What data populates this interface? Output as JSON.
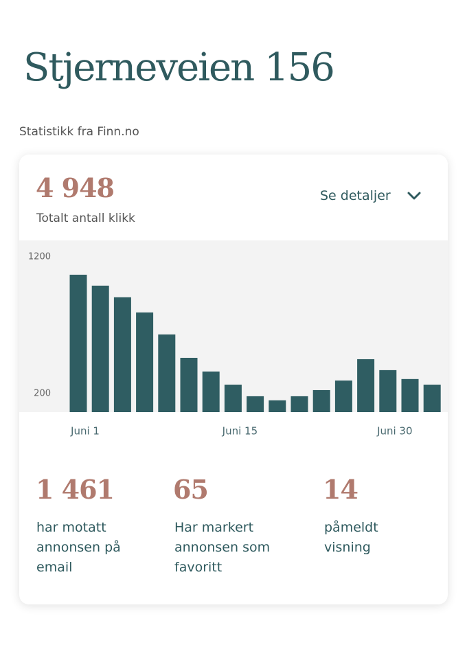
{
  "header": {
    "title": "Stjerneveien 156",
    "subtitle": "Statistikk fra Finn.no"
  },
  "card": {
    "total": "4 948",
    "total_label": "Totalt antall klikk",
    "details_link": "Se detaljer",
    "stats": [
      {
        "value": "1 461",
        "label": "har motatt annonsen på email"
      },
      {
        "value": "65",
        "label": "Har markert annonsen som favoritt"
      },
      {
        "value": "14",
        "label": "påmeldt visning"
      }
    ]
  },
  "chart_data": {
    "type": "bar",
    "color": "#2f5d62",
    "categories": [
      "Juni 1",
      null,
      null,
      null,
      null,
      null,
      null,
      "Juni 15",
      null,
      null,
      null,
      null,
      null,
      null,
      "Juni 30",
      null,
      null
    ],
    "values": [
      1069,
      989,
      904,
      793,
      632,
      461,
      361,
      265,
      180,
      150,
      180,
      225,
      295,
      451,
      371,
      306,
      265
    ],
    "ylim": [
      64,
      1320
    ],
    "yticks": [
      200,
      1200
    ],
    "grid": false
  }
}
